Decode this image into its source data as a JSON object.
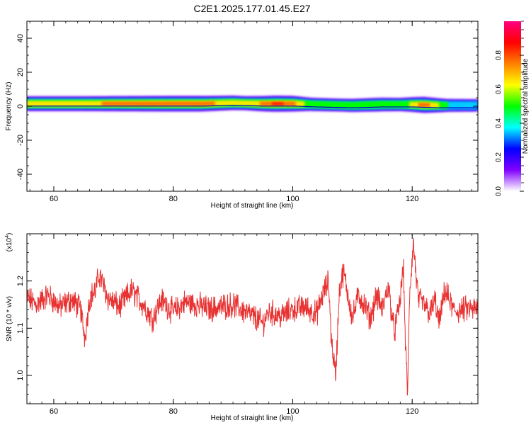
{
  "figure": {
    "title": "C2E1.2025.177.01.45.E27"
  },
  "chart_data": [
    {
      "type": "heatmap",
      "title": "C2E1.2025.177.01.45.E27",
      "xlabel": "Height of straight line (km)",
      "ylabel": "Frequency (Hz)",
      "xlim": [
        55.5,
        131
      ],
      "ylim": [
        -50,
        50
      ],
      "x_ticks": [
        "60",
        "80",
        "100",
        "120"
      ],
      "y_ticks": [
        "40",
        "20",
        "0",
        "-20",
        "-40"
      ],
      "colorbar": {
        "label": "Normalized spectral amplitude",
        "range": [
          0,
          1
        ],
        "ticks": [
          "0.0",
          "0.2",
          "0.4",
          "0.6",
          "0.8"
        ],
        "colors": [
          "#ffffff",
          "#8000ff",
          "#0000ff",
          "#00ffff",
          "#00ff00",
          "#ffff00",
          "#ff8000",
          "#ff0000",
          "#ff0080"
        ]
      },
      "band": {
        "center_hz": [
          [
            55.5,
            1.5
          ],
          [
            70,
            1.5
          ],
          [
            85,
            1.5
          ],
          [
            90,
            2
          ],
          [
            95,
            1.5
          ],
          [
            100,
            1.5
          ],
          [
            104,
            1
          ],
          [
            110,
            0.5
          ],
          [
            115,
            1
          ],
          [
            120,
            1
          ],
          [
            125,
            0.5
          ],
          [
            131,
            0.5
          ]
        ],
        "peak_amplitude": [
          [
            55.5,
            0.7
          ],
          [
            65,
            0.7
          ],
          [
            72,
            0.75
          ],
          [
            80,
            0.8
          ],
          [
            84,
            0.8
          ],
          [
            87,
            0.72
          ],
          [
            92,
            0.6
          ],
          [
            97,
            0.85
          ],
          [
            100,
            0.8
          ],
          [
            103,
            0.5
          ],
          [
            108,
            0.45
          ],
          [
            114,
            0.55
          ],
          [
            118,
            0.5
          ],
          [
            122,
            0.85
          ],
          [
            126,
            0.45
          ],
          [
            131,
            0.4
          ]
        ]
      }
    },
    {
      "type": "line",
      "xlabel": "Height of straight line (km)",
      "ylabel": "SNR (10 * v/v)",
      "y_multiplier": "(x10",
      "y_multiplier_exp": "4",
      "y_multiplier_close": ")",
      "xlim": [
        55.5,
        131
      ],
      "ylim": [
        0.94,
        1.3
      ],
      "x_ticks": [
        "60",
        "80",
        "100",
        "120"
      ],
      "y_ticks": [
        "1.2",
        "1.1",
        "1.0"
      ],
      "color": "#e83232",
      "series": [
        {
          "x": [
            55.5,
            57,
            59,
            61,
            63,
            64.5,
            65.2,
            66,
            67,
            67.6,
            69,
            71,
            73,
            75,
            76.5,
            78,
            80,
            82,
            84,
            86,
            88,
            90,
            92,
            94,
            95,
            96,
            98,
            100,
            102,
            104,
            105,
            106,
            106.5,
            107.2,
            107.8,
            108.5,
            110,
            111,
            112,
            113,
            114,
            115,
            116,
            117,
            118,
            118.5,
            118.8,
            119.2,
            119.6,
            120.2,
            121,
            122,
            123,
            123.8,
            124.5,
            125.5,
            127,
            129,
            131
          ],
          "y": [
            1.165,
            1.15,
            1.17,
            1.145,
            1.16,
            1.14,
            1.08,
            1.165,
            1.18,
            1.215,
            1.165,
            1.145,
            1.18,
            1.15,
            1.12,
            1.16,
            1.135,
            1.155,
            1.15,
            1.14,
            1.145,
            1.15,
            1.135,
            1.12,
            1.11,
            1.135,
            1.125,
            1.14,
            1.145,
            1.13,
            1.17,
            1.2,
            1.07,
            1.0,
            1.18,
            1.22,
            1.12,
            1.17,
            1.15,
            1.12,
            1.17,
            1.14,
            1.19,
            1.09,
            1.16,
            1.235,
            1.1,
            0.96,
            1.18,
            1.28,
            1.16,
            1.15,
            1.13,
            1.16,
            1.11,
            1.18,
            1.135,
            1.14,
            1.14
          ]
        }
      ]
    }
  ]
}
